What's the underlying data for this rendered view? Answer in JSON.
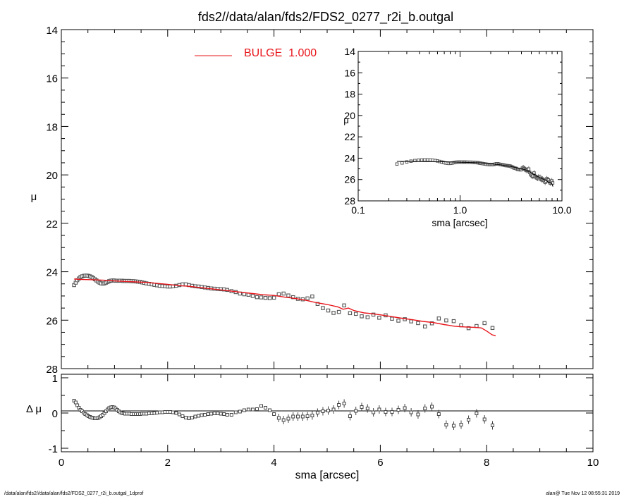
{
  "chart_data": [
    {
      "id": "main",
      "type": "scatter",
      "title": "fds2//data/alan/fds2/FDS2_0277_r2i_b.outgal",
      "xlabel": "",
      "ylabel": "μ",
      "xlim": [
        0,
        10
      ],
      "ylim": [
        28,
        14
      ],
      "y_inverted": true,
      "yticks": [
        14,
        16,
        18,
        20,
        22,
        24,
        26,
        28
      ],
      "legend": {
        "placement": "top-center",
        "label": "BULGE  1.000",
        "color": "#e8141a"
      },
      "series": [
        {
          "kind": "points",
          "x": [
            0.24,
            0.27,
            0.3,
            0.33,
            0.36,
            0.39,
            0.42,
            0.45,
            0.48,
            0.51,
            0.54,
            0.57,
            0.6,
            0.63,
            0.66,
            0.69,
            0.72,
            0.75,
            0.78,
            0.81,
            0.84,
            0.87,
            0.9,
            0.93,
            0.96,
            0.99,
            1.02,
            1.05,
            1.08,
            1.11,
            1.14,
            1.17,
            1.2,
            1.24,
            1.28,
            1.32,
            1.36,
            1.4,
            1.44,
            1.48,
            1.52,
            1.56,
            1.6,
            1.65,
            1.7,
            1.75,
            1.8,
            1.85,
            1.9,
            1.95,
            2.0,
            2.05,
            2.1,
            2.16,
            2.22,
            2.28,
            2.34,
            2.4,
            2.46,
            2.52,
            2.58,
            2.64,
            2.7,
            2.76,
            2.82,
            2.88,
            2.94,
            3.0,
            3.06,
            3.12,
            3.2,
            3.28,
            3.36,
            3.44,
            3.52,
            3.6,
            3.68,
            3.76,
            3.84,
            3.92,
            4.0,
            4.09,
            4.18,
            4.27,
            4.36,
            4.45,
            4.54,
            4.63,
            4.72,
            4.82,
            4.92,
            5.02,
            5.12,
            5.22,
            5.32,
            5.43,
            5.54,
            5.65,
            5.76,
            5.87,
            5.98,
            6.1,
            6.22,
            6.34,
            6.46,
            6.58,
            6.71,
            6.84,
            6.97,
            7.1,
            7.24,
            7.38,
            7.52,
            7.66,
            7.81,
            7.96,
            8.11
          ],
          "y": [
            24.55,
            24.45,
            24.35,
            24.28,
            24.22,
            24.19,
            24.17,
            24.16,
            24.16,
            24.17,
            24.19,
            24.22,
            24.26,
            24.31,
            24.36,
            24.41,
            24.45,
            24.48,
            24.49,
            24.48,
            24.45,
            24.42,
            24.39,
            24.37,
            24.36,
            24.36,
            24.37,
            24.37,
            24.37,
            24.37,
            24.37,
            24.38,
            24.38,
            24.38,
            24.38,
            24.39,
            24.39,
            24.4,
            24.41,
            24.42,
            24.44,
            24.46,
            24.48,
            24.5,
            24.52,
            24.54,
            24.56,
            24.58,
            24.59,
            24.6,
            24.61,
            24.61,
            24.6,
            24.58,
            24.55,
            24.52,
            24.52,
            24.55,
            24.58,
            24.6,
            24.61,
            24.63,
            24.65,
            24.67,
            24.69,
            24.7,
            24.71,
            24.72,
            24.73,
            24.75,
            24.8,
            24.84,
            24.9,
            24.93,
            24.95,
            25.0,
            25.05,
            25.06,
            25.08,
            25.09,
            25.07,
            24.93,
            24.9,
            24.98,
            25.05,
            25.12,
            25.14,
            25.1,
            25.02,
            25.33,
            25.5,
            25.6,
            25.7,
            25.66,
            25.39,
            25.71,
            25.74,
            25.84,
            25.88,
            25.77,
            25.9,
            25.8,
            25.94,
            26.02,
            25.96,
            26.05,
            26.12,
            26.26,
            26.13,
            25.93,
            26.01,
            26.04,
            26.21,
            26.33,
            26.24,
            26.12,
            26.32
          ]
        },
        {
          "kind": "line",
          "name": "BULGE  1.000",
          "color": "#e8141a",
          "x": [
            0.24,
            0.4,
            0.6,
            0.8,
            1.0,
            1.2,
            1.4,
            1.6,
            1.8,
            2.0,
            2.2,
            2.4,
            2.6,
            2.8,
            3.0,
            3.2,
            3.4,
            3.6,
            3.8,
            4.0,
            4.2,
            4.4,
            4.6,
            4.8,
            5.0,
            5.2,
            5.3,
            5.4,
            5.5,
            5.6,
            5.7,
            5.8,
            6.0,
            6.2,
            6.4,
            6.6,
            6.8,
            7.0,
            7.2,
            7.4,
            7.6,
            7.8,
            7.9,
            8.0,
            8.1,
            8.17
          ],
          "y": [
            24.3,
            24.32,
            24.33,
            24.35,
            24.38,
            24.4,
            24.42,
            24.44,
            24.48,
            24.52,
            24.57,
            24.6,
            24.65,
            24.7,
            24.75,
            24.8,
            24.85,
            24.9,
            24.95,
            24.98,
            25.05,
            25.1,
            25.18,
            25.28,
            25.35,
            25.45,
            25.55,
            25.5,
            25.6,
            25.65,
            25.7,
            25.72,
            25.78,
            25.85,
            25.92,
            25.98,
            26.05,
            26.1,
            26.18,
            26.25,
            26.28,
            26.3,
            26.32,
            26.45,
            26.6,
            26.65
          ]
        }
      ]
    },
    {
      "id": "residual",
      "type": "scatter",
      "xlabel": "sma [arcsec]",
      "ylabel": "Δ μ",
      "xlim": [
        0,
        10
      ],
      "ylim": [
        -1.1,
        1.1
      ],
      "xticks": [
        0,
        2,
        4,
        6,
        8,
        10
      ],
      "yticks": [
        -1,
        0,
        1
      ],
      "zero_line": true,
      "series": [
        {
          "kind": "points_with_errors",
          "x": [
            0.24,
            0.27,
            0.3,
            0.33,
            0.36,
            0.39,
            0.42,
            0.45,
            0.48,
            0.51,
            0.54,
            0.57,
            0.6,
            0.63,
            0.66,
            0.69,
            0.72,
            0.75,
            0.78,
            0.81,
            0.84,
            0.87,
            0.9,
            0.93,
            0.96,
            0.99,
            1.02,
            1.05,
            1.08,
            1.11,
            1.14,
            1.17,
            1.2,
            1.24,
            1.28,
            1.32,
            1.36,
            1.4,
            1.44,
            1.48,
            1.52,
            1.56,
            1.6,
            1.65,
            1.7,
            1.75,
            1.8,
            1.85,
            1.9,
            1.95,
            2.0,
            2.05,
            2.1,
            2.16,
            2.22,
            2.28,
            2.34,
            2.4,
            2.46,
            2.52,
            2.58,
            2.64,
            2.7,
            2.76,
            2.82,
            2.88,
            2.94,
            3.0,
            3.06,
            3.12,
            3.2,
            3.28,
            3.36,
            3.44,
            3.52,
            3.6,
            3.68,
            3.76,
            3.84,
            3.92,
            4.0,
            4.09,
            4.18,
            4.27,
            4.36,
            4.45,
            4.54,
            4.63,
            4.72,
            4.82,
            4.92,
            5.02,
            5.12,
            5.22,
            5.32,
            5.43,
            5.54,
            5.65,
            5.76,
            5.87,
            5.98,
            6.1,
            6.22,
            6.34,
            6.46,
            6.58,
            6.71,
            6.84,
            6.97,
            7.1,
            7.24,
            7.38,
            7.52,
            7.66,
            7.81,
            7.96,
            8.11
          ],
          "y": [
            0.35,
            0.3,
            0.22,
            0.15,
            0.09,
            0.05,
            0.01,
            -0.03,
            -0.06,
            -0.09,
            -0.11,
            -0.13,
            -0.14,
            -0.15,
            -0.15,
            -0.14,
            -0.12,
            -0.09,
            -0.05,
            0.0,
            0.05,
            0.1,
            0.14,
            0.16,
            0.17,
            0.16,
            0.13,
            0.09,
            0.05,
            0.02,
            0.0,
            -0.01,
            -0.02,
            -0.02,
            -0.02,
            -0.03,
            -0.03,
            -0.03,
            -0.03,
            -0.03,
            -0.02,
            -0.02,
            -0.02,
            -0.01,
            -0.01,
            0.0,
            0.01,
            0.02,
            0.02,
            0.03,
            0.03,
            0.03,
            0.02,
            0.0,
            -0.04,
            -0.09,
            -0.13,
            -0.15,
            -0.13,
            -0.1,
            -0.08,
            -0.06,
            -0.05,
            -0.03,
            -0.02,
            -0.01,
            -0.01,
            -0.02,
            -0.03,
            -0.05,
            -0.05,
            0.02,
            0.04,
            0.08,
            0.1,
            0.1,
            0.11,
            0.2,
            0.15,
            0.08,
            -0.03,
            -0.14,
            -0.2,
            -0.16,
            -0.1,
            -0.1,
            -0.1,
            -0.09,
            -0.07,
            0.01,
            0.05,
            0.07,
            0.1,
            0.23,
            0.27,
            -0.09,
            0.06,
            0.17,
            0.13,
            0.02,
            0.1,
            0.03,
            0.03,
            0.09,
            0.14,
            0.02,
            -0.04,
            0.13,
            0.18,
            -0.03,
            -0.33,
            -0.36,
            -0.33,
            -0.19,
            -0.01,
            -0.18,
            -0.35
          ]
        }
      ]
    },
    {
      "id": "inset",
      "type": "scatter",
      "xlabel": "sma [arcsec]",
      "ylabel": "μ",
      "x_scale": "log",
      "xlim": [
        0.1,
        10
      ],
      "xticks": [
        "0.1",
        "1.0",
        "10.0"
      ],
      "ylim": [
        28,
        14
      ],
      "y_inverted": true,
      "yticks": [
        14,
        16,
        18,
        20,
        22,
        24,
        26,
        28
      ],
      "series": [
        {
          "kind": "points",
          "source": "main.series.0"
        },
        {
          "kind": "line",
          "color": "#000000",
          "source": "main.series.1"
        }
      ]
    }
  ],
  "footer": {
    "left": "/data/alan/fds2//data/alan/fds2/FDS2_0277_r2i_b.outgal_1dprof",
    "right": "alan@  Tue Nov 12 08:55:31 2019"
  }
}
